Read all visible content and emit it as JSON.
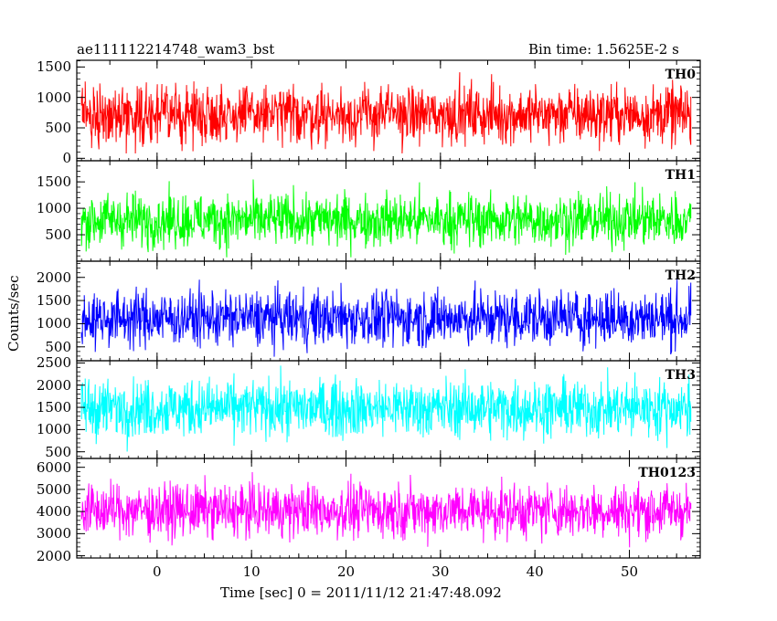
{
  "header": {
    "title": "ae111112214748_wam3_bst",
    "bin_time": "Bin time: 1.5625E-2 s"
  },
  "axes": {
    "ylabel": "Counts/sec",
    "xlabel": "Time [sec] 0 = 2011/11/12 21:47:48.092"
  },
  "chart_data": {
    "type": "line",
    "title": "ae111112214748_wam3_bst",
    "subtitle": "Bin time: 1.5625E-2 s",
    "xlabel": "Time [sec] 0 = 2011/11/12 21:47:48.092",
    "ylabel": "Counts/sec",
    "xlim": [
      -8.5,
      57.5
    ],
    "x_start": -8,
    "x_end": 56.5,
    "x_ticks": [
      0,
      10,
      20,
      30,
      40,
      50
    ],
    "x_tick_labels": [
      "0",
      "10",
      "20",
      "30",
      "40",
      "50"
    ],
    "panels": [
      {
        "name": "TH0",
        "color": "#ff0000",
        "ylim": [
          -40,
          1610
        ],
        "mean": 720,
        "spread": 235,
        "typical_min": 150,
        "typical_max": 1500,
        "y_ticks": [
          0,
          500,
          1000,
          1500
        ],
        "y_tick_labels": [
          "0",
          "500",
          "1000",
          "1500"
        ]
      },
      {
        "name": "TH1",
        "color": "#00ff00",
        "ylim": [
          0,
          1900
        ],
        "mean": 780,
        "spread": 250,
        "typical_min": 150,
        "typical_max": 1800,
        "y_ticks": [
          500,
          1000,
          1500
        ],
        "y_tick_labels": [
          "500",
          "1000",
          "1500"
        ]
      },
      {
        "name": "TH2",
        "color": "#0000ff",
        "ylim": [
          200,
          2350
        ],
        "mean": 1120,
        "spread": 300,
        "typical_min": 350,
        "typical_max": 2250,
        "y_ticks": [
          500,
          1000,
          1500,
          2000
        ],
        "y_tick_labels": [
          "500",
          "1000",
          "1500",
          "2000"
        ]
      },
      {
        "name": "TH3",
        "color": "#00ffff",
        "ylim": [
          350,
          2550
        ],
        "mean": 1480,
        "spread": 320,
        "typical_min": 550,
        "typical_max": 2550,
        "y_ticks": [
          500,
          1000,
          1500,
          2000,
          2500
        ],
        "y_tick_labels": [
          "500",
          "1000",
          "1500",
          "2000",
          "2500"
        ]
      },
      {
        "name": "TH0123",
        "color": "#ff00ff",
        "ylim": [
          1900,
          6400
        ],
        "mean": 4050,
        "spread": 600,
        "typical_min": 2300,
        "typical_max": 6200,
        "y_ticks": [
          2000,
          3000,
          4000,
          5000,
          6000
        ],
        "y_tick_labels": [
          "2000",
          "3000",
          "4000",
          "5000",
          "6000"
        ]
      }
    ]
  }
}
